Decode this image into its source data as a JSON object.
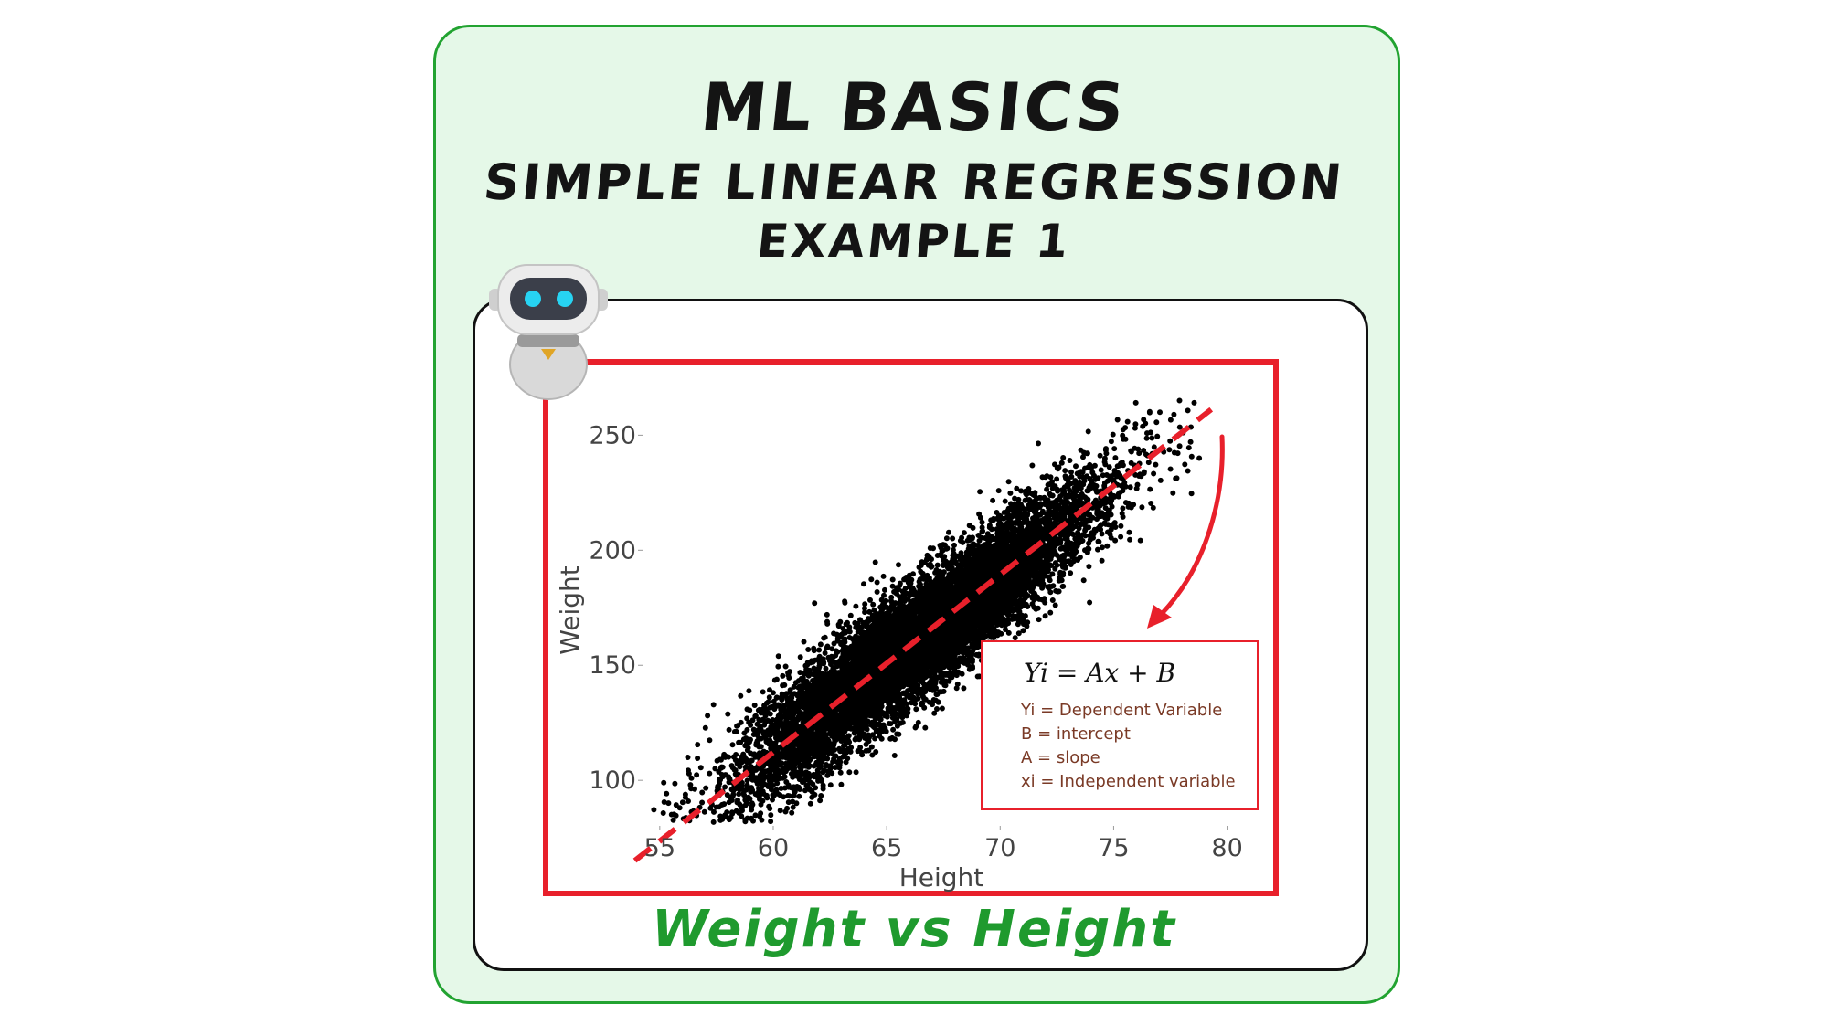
{
  "header": {
    "title": "ML BASICS",
    "subtitle": "SIMPLE LINEAR REGRESSION",
    "example": "EXAMPLE 1"
  },
  "caption": "Weight vs Height",
  "icons": {
    "mascot": "robot-icon",
    "arrow": "curved-arrow-icon"
  },
  "colors": {
    "outer_border": "#22a331",
    "outer_fill": "#e5f8e8",
    "frame": "#e8202b",
    "points": "#000000",
    "fit_line": "#e8202b",
    "caption": "#1f9a2e",
    "legend_text": "#7a3a26"
  },
  "chart_data": {
    "type": "scatter",
    "title": "",
    "xlabel": "Height",
    "ylabel": "Weight",
    "xlim": [
      54,
      80.5
    ],
    "ylim": [
      83,
      270
    ],
    "x_ticks": [
      55,
      60,
      65,
      70,
      75,
      80
    ],
    "y_ticks": [
      100,
      150,
      200,
      250
    ],
    "grid": false,
    "point_count": 10000,
    "point_cloud": {
      "x_mean": 66.4,
      "x_std": 3.85,
      "y_mean": 161.4,
      "y_std": 32.1,
      "correlation": 0.92,
      "x_range": [
        54.3,
        79.0
      ],
      "y_range": [
        64.7,
        269.9
      ]
    },
    "fit_line": {
      "slope": 7.72,
      "intercept": -351.0,
      "x_start": 53.9,
      "x_end": 79.3,
      "style": "dashed"
    },
    "legend_box": {
      "equation": "Yi = Ax + B",
      "lines": [
        "Yi = Dependent Variable",
        "B = intercept",
        "A = slope",
        "xi = Independent variable"
      ]
    }
  }
}
